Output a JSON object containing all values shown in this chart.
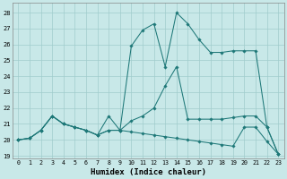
{
  "xlabel": "Humidex (Indice chaleur)",
  "bg_color": "#c8e8e8",
  "grid_color": "#a0cccc",
  "line_color": "#1e7878",
  "xlim": [
    -0.5,
    23.5
  ],
  "ylim": [
    18.85,
    28.6
  ],
  "yticks": [
    19,
    20,
    21,
    22,
    23,
    24,
    25,
    26,
    27,
    28
  ],
  "xticks": [
    0,
    1,
    2,
    3,
    4,
    5,
    6,
    7,
    8,
    9,
    10,
    11,
    12,
    13,
    14,
    15,
    16,
    17,
    18,
    19,
    20,
    21,
    22,
    23
  ],
  "series1": {
    "x": [
      0,
      1,
      2,
      3,
      4,
      5,
      6,
      7,
      8,
      9,
      10,
      11,
      12,
      13,
      14,
      15,
      16,
      17,
      18,
      19,
      20,
      21,
      22,
      23
    ],
    "y": [
      20.0,
      20.1,
      20.6,
      21.5,
      21.0,
      20.8,
      20.6,
      20.3,
      21.5,
      20.6,
      25.9,
      26.9,
      27.3,
      24.6,
      28.0,
      27.3,
      26.3,
      25.5,
      25.5,
      25.6,
      25.6,
      25.6,
      20.8,
      19.1
    ]
  },
  "series2": {
    "x": [
      0,
      1,
      2,
      3,
      4,
      5,
      6,
      7,
      8,
      9,
      10,
      11,
      12,
      13,
      14,
      15,
      16,
      17,
      18,
      19,
      20,
      21,
      22,
      23
    ],
    "y": [
      20.0,
      20.1,
      20.6,
      21.5,
      21.0,
      20.8,
      20.6,
      20.3,
      20.6,
      20.6,
      21.2,
      21.5,
      22.0,
      23.4,
      24.6,
      21.3,
      21.3,
      21.3,
      21.3,
      21.4,
      21.5,
      21.5,
      20.8,
      19.1
    ]
  },
  "series3": {
    "x": [
      0,
      1,
      2,
      3,
      4,
      5,
      6,
      7,
      8,
      9,
      10,
      11,
      12,
      13,
      14,
      15,
      16,
      17,
      18,
      19,
      20,
      21,
      22,
      23
    ],
    "y": [
      20.0,
      20.1,
      20.6,
      21.5,
      21.0,
      20.8,
      20.6,
      20.3,
      20.6,
      20.6,
      20.5,
      20.4,
      20.3,
      20.2,
      20.1,
      20.0,
      19.9,
      19.8,
      19.7,
      19.6,
      20.8,
      20.8,
      19.9,
      19.1
    ]
  }
}
